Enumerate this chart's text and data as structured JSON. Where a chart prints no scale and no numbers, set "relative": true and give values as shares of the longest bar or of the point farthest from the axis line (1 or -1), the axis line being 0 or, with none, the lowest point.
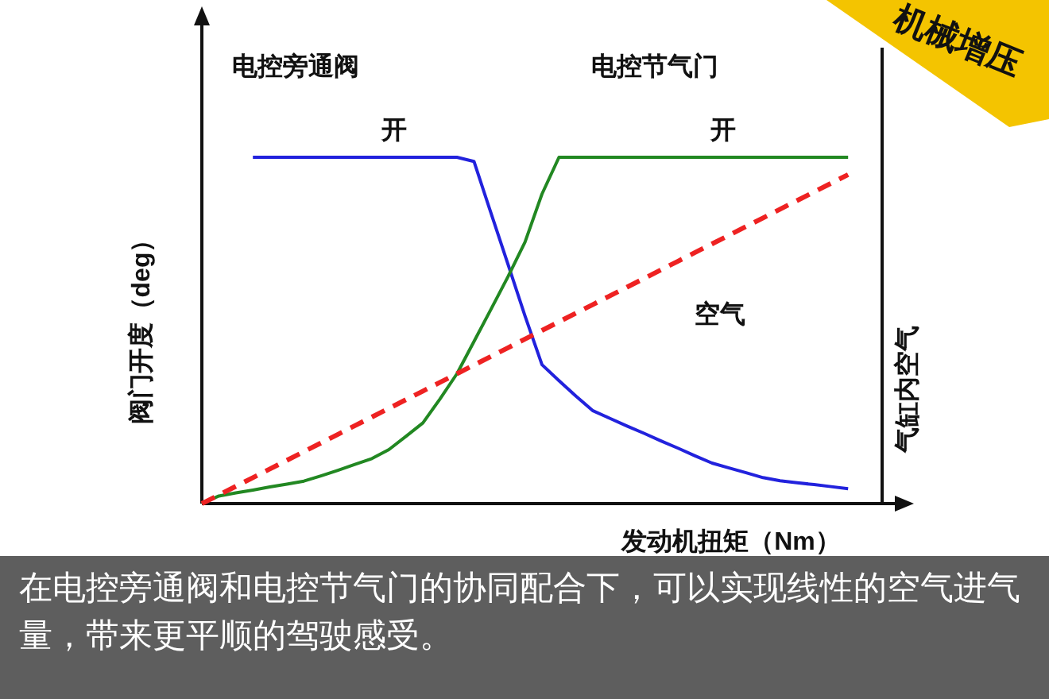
{
  "chart_data": {
    "type": "line",
    "relative": true,
    "xlabel": "发动机扭矩（Nm）",
    "ylabel": "阀门开度（deg）",
    "y2label": "气缸内空气",
    "marker": "none",
    "categories": [
      null,
      null,
      null,
      null,
      null,
      null,
      null,
      null,
      null,
      null,
      null,
      null,
      null,
      null,
      null,
      null,
      null,
      null,
      null,
      null,
      null,
      null,
      null,
      null,
      null,
      null,
      null,
      null,
      null,
      null,
      null,
      null,
      null,
      null,
      null,
      null,
      null,
      null,
      null
    ],
    "series": [
      {
        "color": "#2222dd",
        "values": [
          null,
          null,
          null,
          1,
          1,
          1,
          1,
          1,
          1,
          1,
          1,
          1,
          1,
          1,
          1,
          1,
          0.988,
          0.839,
          0.691,
          0.542,
          0.401,
          0.355,
          0.31,
          0.268,
          0.246,
          0.224,
          0.203,
          0.181,
          0.16,
          0.138,
          0.117,
          0.103,
          0.089,
          0.075,
          0.066,
          0.06,
          0.055,
          0.049,
          0.043
        ]
      },
      {
        "color": "#228822",
        "values": [
          0,
          0.022,
          0.031,
          0.039,
          0.048,
          0.056,
          0.065,
          0.08,
          0.096,
          0.113,
          0.13,
          0.156,
          0.194,
          0.233,
          0.302,
          0.375,
          0.468,
          0.561,
          0.655,
          0.755,
          0.894,
          1,
          1,
          1,
          1,
          1,
          1,
          1,
          1,
          1,
          1,
          1,
          1,
          1,
          1,
          1,
          1,
          1,
          1
        ]
      },
      {
        "color": "#ee2222",
        "line_style": "dashed",
        "values": [
          0,
          0.025,
          0.05,
          0.075,
          0.1,
          0.125,
          0.15,
          0.175,
          0.2,
          0.225,
          0.25,
          0.275,
          0.3,
          0.325,
          0.35,
          0.375,
          0.4,
          0.425,
          0.45,
          0.475,
          0.5,
          0.525,
          0.55,
          0.575,
          0.6,
          0.625,
          0.65,
          0.675,
          0.7,
          0.725,
          0.75,
          0.775,
          0.8,
          0.825,
          0.85,
          0.875,
          0.9,
          0.925,
          0.95
        ]
      }
    ],
    "annotations": [
      "电控旁通阀",
      "电控节气门",
      "开",
      "开",
      "空气",
      "机械增压",
      "在电控旁通阀和电控节气门的协同配合下，可以实现线性的空气进气量，带来更平顺的驾驶感受。"
    ]
  }
}
